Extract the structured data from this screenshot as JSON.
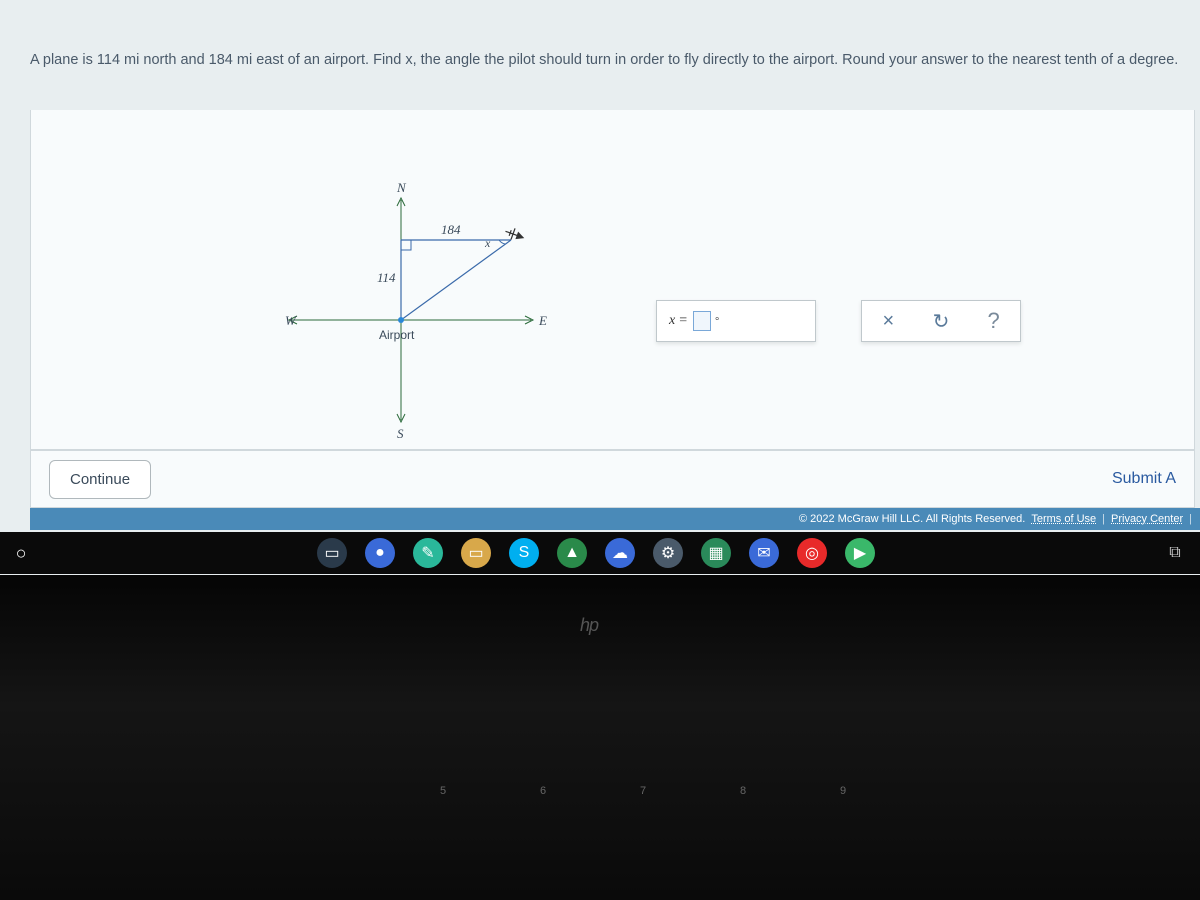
{
  "question": "A plane is 114 mi north and 184 mi east of an airport. Find x, the angle the pilot should turn in order to fly directly to the airport. Round your answer to the nearest tenth of a degree.",
  "diagram": {
    "compass_n": "N",
    "compass_s": "S",
    "compass_e": "E",
    "compass_w": "W",
    "side_vertical": "114",
    "side_top": "184",
    "angle_label": "x",
    "origin_label": "Airport",
    "colors": {
      "axis": "#2a6a3a",
      "triangle": "#3a6aaa",
      "airport_dot": "#2a88d8",
      "text": "#3a4a5a"
    }
  },
  "answer": {
    "prefix": "x",
    "equals": "=",
    "unit_degree": "°"
  },
  "tools": {
    "clear": "×",
    "reset": "↻",
    "help": "?"
  },
  "buttons": {
    "continue": "Continue",
    "submit": "Submit A"
  },
  "footer": {
    "copyright": "© 2022 McGraw Hill LLC. All Rights Reserved.",
    "terms": "Terms of Use",
    "privacy": "Privacy Center"
  },
  "taskbar": {
    "start": "○",
    "icons": [
      {
        "name": "task-view",
        "glyph": "▭",
        "bg": "#2a3a4a"
      },
      {
        "name": "camera",
        "glyph": "●",
        "bg": "#3a6ad8"
      },
      {
        "name": "paint-3d",
        "glyph": "✎",
        "bg": "#2ab89a"
      },
      {
        "name": "file-explorer",
        "glyph": "▭",
        "bg": "#d8a84a"
      },
      {
        "name": "skype",
        "glyph": "S",
        "bg": "#00aff0"
      },
      {
        "name": "drive",
        "glyph": "▲",
        "bg": "#2a8a4a"
      },
      {
        "name": "onedrive",
        "glyph": "☁",
        "bg": "#3a6ad8"
      },
      {
        "name": "settings",
        "glyph": "⚙",
        "bg": "#4a5a6a"
      },
      {
        "name": "calc",
        "glyph": "▦",
        "bg": "#2a8a5a"
      },
      {
        "name": "mail",
        "glyph": "✉",
        "bg": "#3a6ad8"
      },
      {
        "name": "xbox",
        "glyph": "◎",
        "bg": "#e82a2a"
      },
      {
        "name": "store",
        "glyph": "▶",
        "bg": "#3ab86a"
      }
    ],
    "tray": "⧉"
  },
  "bezel": {
    "logo": "hp",
    "keys": [
      "5",
      "6",
      "7",
      "8",
      "9"
    ]
  }
}
